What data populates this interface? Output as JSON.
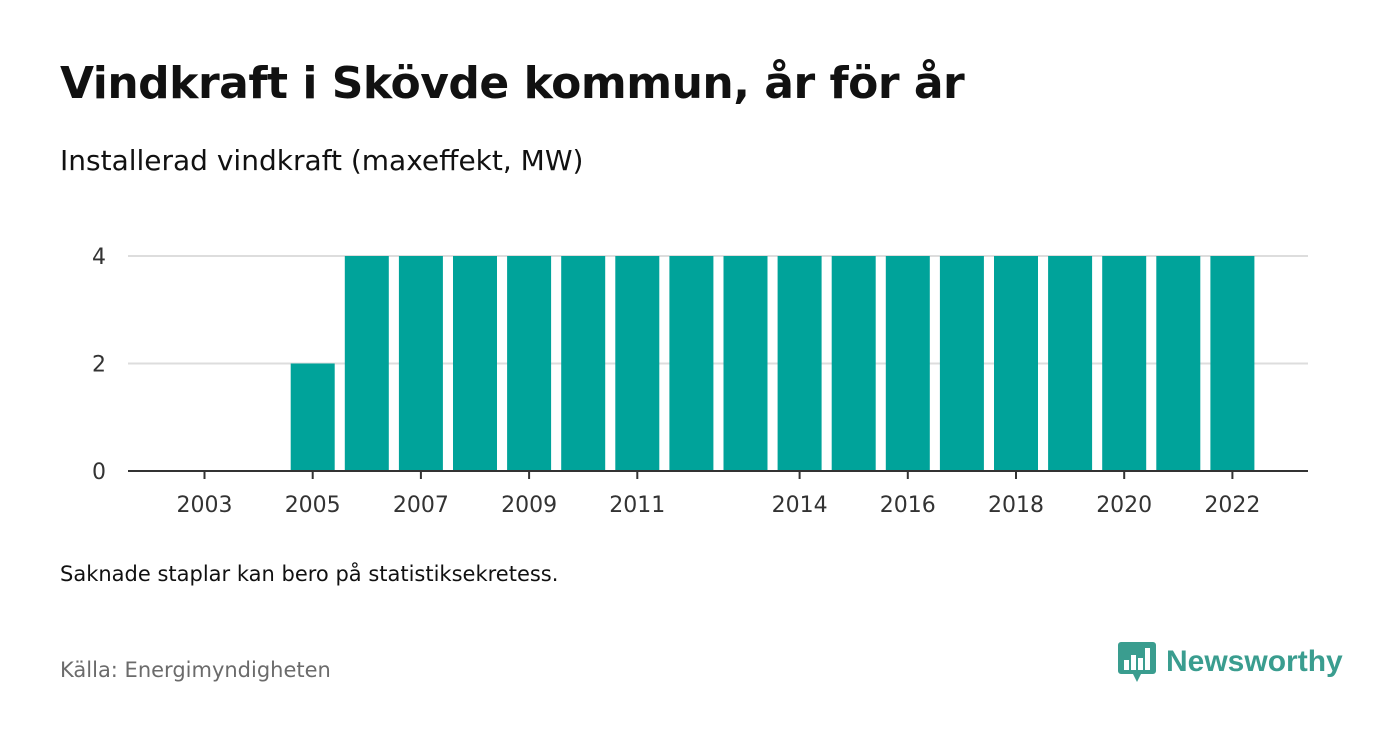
{
  "title": "Vindkraft i Skövde kommun, år för år",
  "subtitle": "Installerad vindkraft (maxeffekt, MW)",
  "note": "Saknade staplar kan bero på statistiksekretess.",
  "source": "Källa: Energimyndigheten",
  "brand": {
    "name": "Newsworthy",
    "color": "#3a9d8f",
    "icon": "newsworthy-logo-icon"
  },
  "colors": {
    "bar": "#00a39a",
    "grid": "#dddddd",
    "axis": "#333333",
    "text": "#111111",
    "muted": "#6b6b6b"
  },
  "chart_data": {
    "type": "bar",
    "categories": [
      "2003",
      "2004",
      "2005",
      "2006",
      "2007",
      "2008",
      "2009",
      "2010",
      "2011",
      "2012",
      "2013",
      "2014",
      "2015",
      "2016",
      "2017",
      "2018",
      "2019",
      "2020",
      "2021",
      "2022"
    ],
    "values": [
      null,
      null,
      2,
      4,
      4,
      4,
      4,
      4,
      4,
      4,
      4,
      4,
      4,
      4,
      4,
      4,
      4,
      4,
      4,
      4
    ],
    "x_tick_labels": [
      "2003",
      "2005",
      "2007",
      "2009",
      "2011",
      "2014",
      "2016",
      "2018",
      "2020",
      "2022"
    ],
    "y_ticks": [
      0,
      2,
      4
    ],
    "ylim": [
      0,
      4
    ],
    "grid": true,
    "title": "Vindkraft i Skövde kommun, år för år",
    "xlabel": "",
    "ylabel": ""
  }
}
